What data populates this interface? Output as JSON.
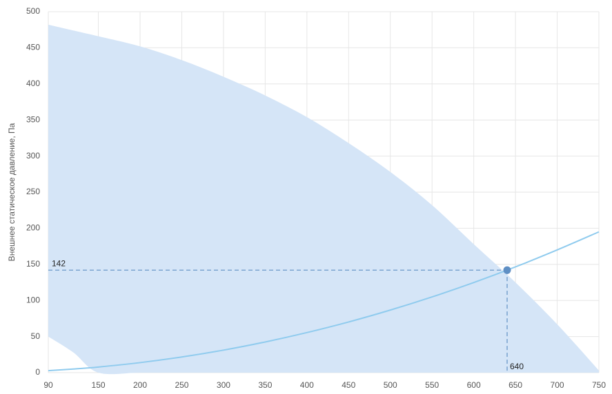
{
  "chart_data": {
    "type": "line",
    "y_label": "Внешнее статическое давление, Па",
    "x": [
      90,
      120,
      150,
      200,
      250,
      300,
      350,
      400,
      450,
      500,
      550,
      600,
      650,
      700,
      750
    ],
    "series": [
      {
        "type": "area",
        "color": "#d5e5f7",
        "values": [
          482,
          474,
          466,
          452,
          433,
          410,
          384,
          354,
          318,
          278,
          232,
          178,
          125,
          67,
          3
        ],
        "base": [
          50,
          28,
          0,
          0,
          0,
          0,
          0,
          0,
          0,
          0,
          0,
          0,
          0,
          0,
          0
        ]
      },
      {
        "type": "line",
        "color": "#8fcbee",
        "values": [
          2.8,
          5,
          7.8,
          13.9,
          21.7,
          31.2,
          42.5,
          55.5,
          70.2,
          86.7,
          104.9,
          124.8,
          146.5,
          170,
          195
        ]
      }
    ],
    "point": {
      "x": 640,
      "y": 142,
      "color": "#5f8fc4"
    },
    "xlim": [
      90,
      750
    ],
    "xticks": [
      90,
      150,
      200,
      250,
      300,
      350,
      400,
      450,
      500,
      550,
      600,
      650,
      700,
      750
    ],
    "ylim": [
      0,
      500
    ],
    "yticks": [
      0,
      50,
      100,
      150,
      200,
      250,
      300,
      350,
      400,
      450,
      500
    ],
    "grid": true
  }
}
